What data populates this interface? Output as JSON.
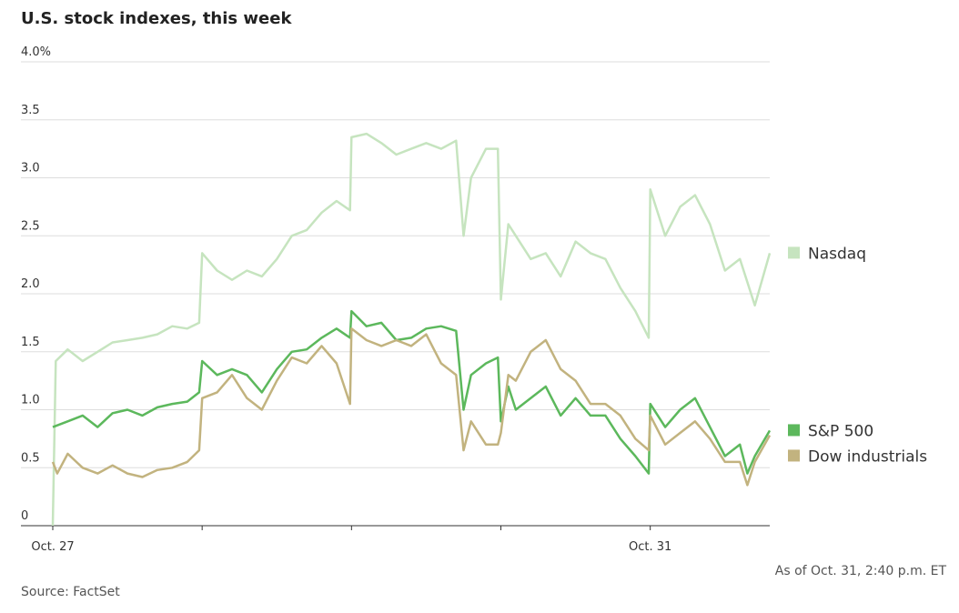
{
  "chart_data": {
    "type": "line",
    "title": "U.S. stock indexes, this week",
    "source": "Source: FactSet",
    "note": "As of Oct. 31, 2:40 p.m. ET",
    "xlim": [
      0,
      4.8
    ],
    "xticks": [
      {
        "value": 0,
        "label": "Oct. 27"
      },
      {
        "value": 4,
        "label": "Oct. 31"
      }
    ],
    "xminor_ticks": [
      1,
      2,
      3
    ],
    "ylim": [
      0,
      4
    ],
    "yticks": [
      0,
      0.5,
      {
        "value": 1,
        "label": "1.0"
      },
      1.5,
      {
        "value": 2,
        "label": "2.0"
      },
      2.5,
      {
        "value": 3,
        "label": "3.0"
      },
      3.5,
      {
        "value": 4,
        "label": "4.0%"
      }
    ],
    "grid": true,
    "series": [
      {
        "name": "Nasdaq",
        "color": "#c6e4bf",
        "x": [
          0,
          0.02,
          0.1,
          0.2,
          0.3,
          0.4,
          0.5,
          0.6,
          0.7,
          0.8,
          0.9,
          0.98,
          1.0,
          1.1,
          1.2,
          1.3,
          1.4,
          1.5,
          1.6,
          1.7,
          1.8,
          1.9,
          1.99,
          2.0,
          2.1,
          2.2,
          2.3,
          2.4,
          2.5,
          2.6,
          2.7,
          2.75,
          2.8,
          2.9,
          2.98,
          3.0,
          3.05,
          3.1,
          3.2,
          3.3,
          3.4,
          3.5,
          3.6,
          3.7,
          3.8,
          3.9,
          3.99,
          4.0,
          4.1,
          4.2,
          4.3,
          4.4,
          4.5,
          4.6,
          4.7,
          4.8
        ],
        "values": [
          0,
          1.42,
          1.52,
          1.42,
          1.5,
          1.58,
          1.6,
          1.62,
          1.65,
          1.72,
          1.7,
          1.75,
          2.35,
          2.2,
          2.12,
          2.2,
          2.15,
          2.3,
          2.5,
          2.55,
          2.7,
          2.8,
          2.72,
          3.35,
          3.38,
          3.3,
          3.2,
          3.25,
          3.3,
          3.25,
          3.32,
          2.5,
          3.0,
          3.25,
          3.25,
          1.95,
          2.6,
          2.5,
          2.3,
          2.35,
          2.15,
          2.45,
          2.35,
          2.3,
          2.05,
          1.85,
          1.62,
          2.9,
          2.5,
          2.75,
          2.85,
          2.6,
          2.2,
          2.3,
          1.9,
          2.35
        ]
      },
      {
        "name": "S&P 500",
        "color": "#5cb85c",
        "x": [
          0,
          0.1,
          0.2,
          0.3,
          0.4,
          0.5,
          0.6,
          0.7,
          0.8,
          0.9,
          0.98,
          1.0,
          1.1,
          1.2,
          1.3,
          1.4,
          1.5,
          1.6,
          1.7,
          1.8,
          1.9,
          1.99,
          2.0,
          2.1,
          2.2,
          2.3,
          2.4,
          2.5,
          2.6,
          2.7,
          2.75,
          2.8,
          2.9,
          2.98,
          3.0,
          3.05,
          3.1,
          3.2,
          3.3,
          3.4,
          3.5,
          3.6,
          3.7,
          3.8,
          3.9,
          3.99,
          4.0,
          4.1,
          4.2,
          4.3,
          4.4,
          4.5,
          4.6,
          4.65,
          4.7,
          4.8
        ],
        "values": [
          0.85,
          0.9,
          0.95,
          0.85,
          0.97,
          1.0,
          0.95,
          1.02,
          1.05,
          1.07,
          1.15,
          1.42,
          1.3,
          1.35,
          1.3,
          1.15,
          1.35,
          1.5,
          1.52,
          1.62,
          1.7,
          1.62,
          1.85,
          1.72,
          1.75,
          1.6,
          1.62,
          1.7,
          1.72,
          1.68,
          1.0,
          1.3,
          1.4,
          1.45,
          0.9,
          1.2,
          1.0,
          1.1,
          1.2,
          0.95,
          1.1,
          0.95,
          0.95,
          0.75,
          0.6,
          0.45,
          1.05,
          0.85,
          1.0,
          1.1,
          0.85,
          0.6,
          0.7,
          0.45,
          0.6,
          0.82
        ]
      },
      {
        "name": "Dow industrials",
        "color": "#c2b37f",
        "x": [
          0,
          0.03,
          0.1,
          0.2,
          0.3,
          0.4,
          0.5,
          0.6,
          0.7,
          0.8,
          0.9,
          0.98,
          1.0,
          1.1,
          1.2,
          1.3,
          1.4,
          1.5,
          1.6,
          1.7,
          1.8,
          1.9,
          1.99,
          2.0,
          2.1,
          2.2,
          2.3,
          2.4,
          2.5,
          2.6,
          2.7,
          2.75,
          2.8,
          2.9,
          2.98,
          3.0,
          3.05,
          3.1,
          3.2,
          3.3,
          3.4,
          3.5,
          3.6,
          3.7,
          3.8,
          3.9,
          3.99,
          4.0,
          4.1,
          4.2,
          4.3,
          4.4,
          4.5,
          4.6,
          4.65,
          4.7,
          4.8
        ],
        "values": [
          0.55,
          0.45,
          0.62,
          0.5,
          0.45,
          0.52,
          0.45,
          0.42,
          0.48,
          0.5,
          0.55,
          0.65,
          1.1,
          1.15,
          1.3,
          1.1,
          1.0,
          1.25,
          1.45,
          1.4,
          1.55,
          1.4,
          1.05,
          1.7,
          1.6,
          1.55,
          1.6,
          1.55,
          1.65,
          1.4,
          1.3,
          0.65,
          0.9,
          0.7,
          0.7,
          0.8,
          1.3,
          1.25,
          1.5,
          1.6,
          1.35,
          1.25,
          1.05,
          1.05,
          0.95,
          0.75,
          0.65,
          0.95,
          0.7,
          0.8,
          0.9,
          0.75,
          0.55,
          0.55,
          0.35,
          0.55,
          0.78
        ]
      }
    ]
  }
}
